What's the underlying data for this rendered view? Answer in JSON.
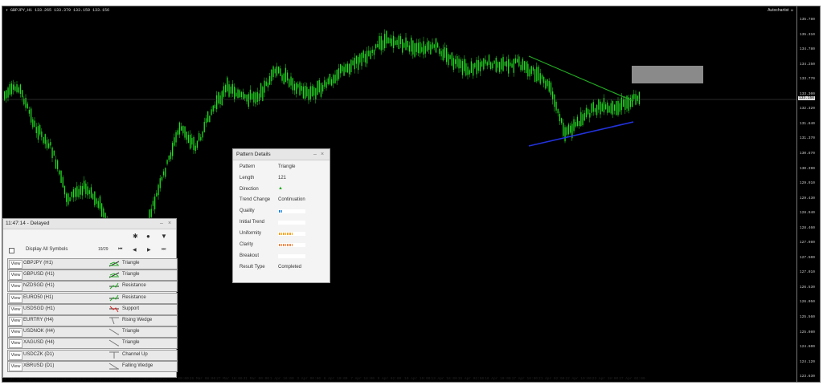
{
  "header": {
    "symbol_info": "▾ GBPJPY,H1  133.265 133.379 133.159 133.156",
    "autochartist_label": "Autochartist"
  },
  "price_axis": {
    "labels": [
      "135.780",
      "135.310",
      "134.780",
      "134.250",
      "133.770",
      "133.300",
      "132.320",
      "131.840",
      "131.370",
      "130.870",
      "130.390",
      "129.910",
      "129.430",
      "128.940",
      "128.460",
      "127.980",
      "127.500",
      "127.010",
      "126.530",
      "126.050",
      "125.560",
      "125.080",
      "124.600",
      "124.120",
      "123.630"
    ],
    "current_price": "133.156"
  },
  "time_axis": {
    "labels": [
      "12 Mar 2020",
      "16 Mar 00:00",
      "17 Mar 16:00",
      "19 Mar 00:00",
      "20 Mar 08:00",
      "23 Mar 16:00",
      "25 Mar 00:00",
      "26 Mar 08:00",
      "27 Mar 16:00",
      "31 Mar 00:00",
      "1 Apr 16:00",
      "3 Apr 00:00",
      "6 Apr 10:00",
      "7 Apr 18:00",
      "9 Apr 02:00",
      "10 Apr 10:00",
      "13 Apr 18:00",
      "15 Apr 02:00",
      "16 Apr 10:00",
      "17 Apr 18:00",
      "21 Apr 02:00",
      "22 Apr 10:00",
      "23 Apr 18:00",
      "27 Apr 02:00"
    ]
  },
  "pattern_details": {
    "title": "Pattern Details",
    "rows": {
      "pattern": {
        "label": "Pattern",
        "value": "Triangle"
      },
      "length": {
        "label": "Length",
        "value": "121"
      },
      "direction": {
        "label": "Direction",
        "value": "▲"
      },
      "trend_change": {
        "label": "Trend Change",
        "value": "Continuation"
      },
      "quality": {
        "label": "Quality"
      },
      "initial_trend": {
        "label": "Initial Trend"
      },
      "uniformity": {
        "label": "Uniformity"
      },
      "clarity": {
        "label": "Clarity"
      },
      "breakout": {
        "label": "Breakout"
      },
      "result_type": {
        "label": "Result Type",
        "value": "Completed"
      }
    },
    "bars": {
      "quality": 0.15,
      "initial_trend": 0,
      "uniformity": 0.55,
      "clarity": 0.55,
      "breakout": 0
    },
    "bar_colors": {
      "quality": "#1e88e5",
      "uniformity": "#f5a623",
      "clarity": "#f08a4b"
    }
  },
  "symbols_panel": {
    "title": "11:47:14 - Delayed",
    "display_all_label": "Display All Symbols",
    "page_counter": "19/29",
    "view_label": "View",
    "rows": [
      {
        "symbol": "GBPJPY (H1)",
        "pattern": "Triangle",
        "icon": "triangle-up-icon"
      },
      {
        "symbol": "GBPUSD (H1)",
        "pattern": "Triangle",
        "icon": "triangle-up-icon"
      },
      {
        "symbol": "NZDSGD (H1)",
        "pattern": "Resistance",
        "icon": "resistance-icon"
      },
      {
        "symbol": "EURO50 (H1)",
        "pattern": "Resistance",
        "icon": "resistance-icon"
      },
      {
        "symbol": "USDSGD (H1)",
        "pattern": "Support",
        "icon": "support-icon"
      },
      {
        "symbol": "EURTRY (H4)",
        "pattern": "Rising Wedge",
        "icon": "rising-wedge-icon"
      },
      {
        "symbol": "USDNOK (H4)",
        "pattern": "Triangle",
        "icon": "triangle-down-icon"
      },
      {
        "symbol": "XAGUSD (H4)",
        "pattern": "Triangle",
        "icon": "triangle-down-icon"
      },
      {
        "symbol": "USDCZK (D1)",
        "pattern": "Channel Up",
        "icon": "channel-up-icon"
      },
      {
        "symbol": "XBRUSD (D1)",
        "pattern": "Falling Wedge",
        "icon": "falling-wedge-icon"
      }
    ]
  },
  "colors": {
    "candle": "#22dd22",
    "trend_upper": "#22aa22",
    "trend_lower": "#2233dd",
    "forecast_box": "#8a8a8a"
  }
}
